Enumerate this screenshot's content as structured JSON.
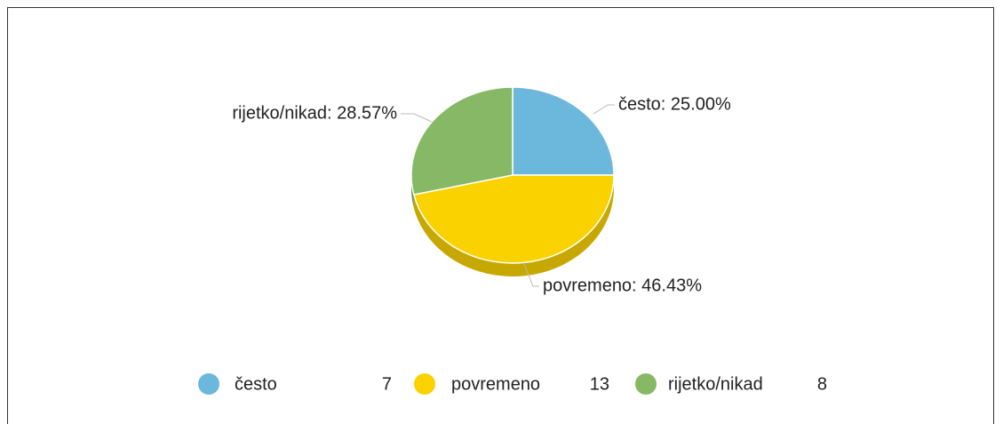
{
  "chart_data": {
    "type": "pie",
    "categories": [
      "često",
      "povremeno",
      "rijetko/nikad"
    ],
    "values": [
      25.0,
      46.43,
      28.57
    ],
    "value_labels": [
      "često: 25.00%",
      "povremeno: 46.43%",
      "rijetko/nikad: 28.57%"
    ],
    "counts": [
      7,
      13,
      8
    ],
    "colors": [
      "#6cb8dc",
      "#f9d200",
      "#86b865"
    ]
  }
}
